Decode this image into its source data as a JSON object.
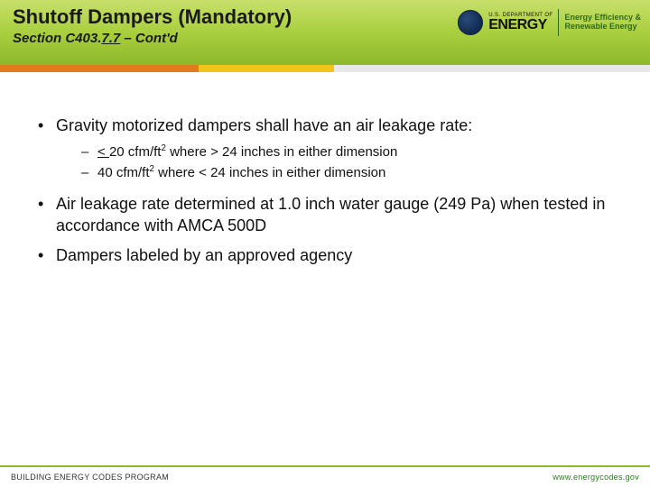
{
  "header": {
    "title": "Shutoff Dampers (Mandatory)",
    "subtitle_prefix": "Section C403.",
    "subtitle_underlined": "7.7",
    "subtitle_suffix": " – Cont'd"
  },
  "logo": {
    "dept_small": "U.S. DEPARTMENT OF",
    "dept_big": "ENERGY",
    "eere_line1": "Energy Efficiency &",
    "eere_line2": "Renewable Energy"
  },
  "bullets": {
    "b1": "Gravity motorized dampers shall have an air leakage rate:",
    "sub1_pre": "< ",
    "sub1_mid": "20 cfm/ft",
    "sub1_post": " where > 24 inches in either dimension",
    "sub2_pre": "40 cfm/ft",
    "sub2_post": " where < 24 inches in either dimension",
    "b2": "Air leakage rate determined at 1.0 inch water gauge (249 Pa) when tested in accordance with AMCA 500D",
    "b3": "Dampers labeled by an approved agency"
  },
  "footer": {
    "left": "BUILDING ENERGY CODES PROGRAM",
    "right": "www.energycodes.gov"
  },
  "colors": {
    "header_grad_top": "#c8e06b",
    "header_grad_bot": "#8db82b",
    "accent_orange": "#e07b1e",
    "accent_yellow": "#f0c419",
    "accent_gray": "#e8e8e8",
    "eere_green": "#2f6b1e"
  }
}
